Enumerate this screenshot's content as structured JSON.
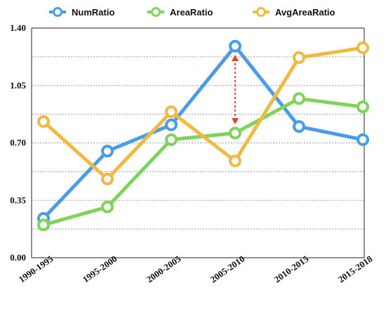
{
  "chart_data": {
    "type": "line",
    "categories": [
      "1990-1995",
      "1995-2000",
      "2000-2005",
      "2005-2010",
      "2010-2015",
      "2015-2018"
    ],
    "series": [
      {
        "name": "NumRatio",
        "color": "#4a9be8",
        "values": [
          0.24,
          0.65,
          0.81,
          1.29,
          0.8,
          0.72
        ]
      },
      {
        "name": "AreaRatio",
        "color": "#7ed35a",
        "values": [
          0.2,
          0.31,
          0.72,
          0.76,
          0.97,
          0.92
        ]
      },
      {
        "name": "AvgAreaRatio",
        "color": "#f0b942",
        "values": [
          0.83,
          0.48,
          0.89,
          0.59,
          1.22,
          1.28
        ]
      }
    ],
    "yticks": [
      "0.00",
      "0.35",
      "0.70",
      "1.05",
      "1.40"
    ],
    "ylim": [
      0,
      1.4
    ],
    "grid": "horizontal dotted",
    "legend_position": "top",
    "annotation": {
      "type": "double-arrow",
      "category": "2005-2010",
      "from": 1.28,
      "to": 0.77,
      "color": "#e8432f"
    }
  }
}
